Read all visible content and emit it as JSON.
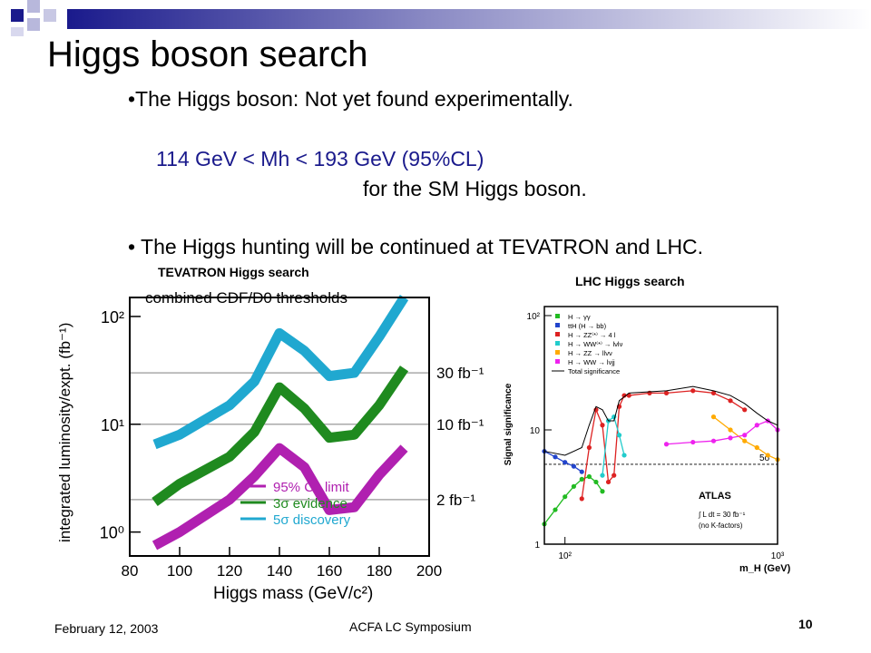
{
  "slide": {
    "title": "Higgs boson search",
    "bullet1": "•The Higgs boson:  Not yet found experimentally.",
    "mass_range": "114 GeV < Mh < 193 GeV (95%CL)",
    "mass_range_suffix": "for the SM Higgs boson.",
    "bullet2": "• The Higgs hunting will be continued at TEVATRON and LHC.",
    "accent_color": "#1a1a8c"
  },
  "captions": {
    "tevatron": "TEVATRON Higgs search",
    "lhc": "LHC Higgs search"
  },
  "footer": {
    "date": "February 12, 2003",
    "event": "ACFA LC Symposium",
    "page": "10"
  },
  "chart_data": [
    {
      "type": "line",
      "title": "combined CDF/D0 thresholds",
      "xlabel": "Higgs mass (GeV/c²)",
      "ylabel": "integrated luminosity/expt. (fb⁻¹)",
      "y_scale": "log",
      "xlim": [
        80,
        200
      ],
      "ylim": [
        0.6,
        150
      ],
      "x_ticks": [
        "80",
        "100",
        "120",
        "140",
        "160",
        "180",
        "200"
      ],
      "y_ticks": [
        "10⁰",
        "10¹",
        "10²"
      ],
      "x": [
        90,
        100,
        120,
        130,
        140,
        150,
        160,
        170,
        180,
        190
      ],
      "series": [
        {
          "name": "95% CL limit",
          "color": "#b020b0",
          "values": [
            0.75,
            1.0,
            2.0,
            3.3,
            6.0,
            4.0,
            1.6,
            1.7,
            3.4,
            6.0
          ]
        },
        {
          "name": "3σ evidence",
          "color": "#1f8a1f",
          "values": [
            1.9,
            2.8,
            5.0,
            8.5,
            22.0,
            14.0,
            7.5,
            8.0,
            15.0,
            33.0
          ]
        },
        {
          "name": "5σ discovery",
          "color": "#20a8d0",
          "values": [
            6.5,
            8.0,
            15.0,
            25.0,
            70.0,
            48.0,
            28.0,
            30.0,
            65.0,
            150.0
          ]
        }
      ],
      "reference_lines": [
        {
          "value": 30,
          "label": "30 fb⁻¹"
        },
        {
          "value": 10,
          "label": "10 fb⁻¹"
        },
        {
          "value": 2,
          "label": "2 fb⁻¹"
        }
      ],
      "legend": "bottom-right",
      "grid": false
    },
    {
      "type": "line",
      "xlabel": "m_H (GeV)",
      "ylabel": "Signal significance",
      "x_scale": "log",
      "y_scale": "log",
      "xlim": [
        80,
        1000
      ],
      "ylim": [
        1,
        120
      ],
      "x_ticks": [
        "10²",
        "10³"
      ],
      "y_ticks": [
        "1",
        "10",
        "10²"
      ],
      "threshold": {
        "value": 5,
        "label": "5σ"
      },
      "series": [
        {
          "name": "H → γγ",
          "color": "#22bb22",
          "x": [
            80,
            90,
            100,
            110,
            120,
            130,
            140,
            150
          ],
          "values": [
            1.5,
            2.0,
            2.6,
            3.2,
            3.7,
            3.9,
            3.5,
            2.9
          ]
        },
        {
          "name": "ttH (H → bb)",
          "color": "#2244cc",
          "x": [
            80,
            90,
            100,
            110,
            120
          ],
          "values": [
            6.5,
            5.8,
            5.2,
            4.8,
            4.3
          ]
        },
        {
          "name": "H → ZZ⁽*⁾ → 4 l",
          "color": "#dd2222",
          "x": [
            120,
            130,
            140,
            150,
            160,
            170,
            180,
            190,
            200,
            250,
            300,
            400,
            500,
            600,
            700
          ],
          "values": [
            2.5,
            7.0,
            15.0,
            11.0,
            3.5,
            4.0,
            16.0,
            20.0,
            20.0,
            21.0,
            21.0,
            22.0,
            21.0,
            18.0,
            15.0
          ]
        },
        {
          "name": "H → WW⁽*⁾ → lνlν",
          "color": "#22cccc",
          "x": [
            150,
            160,
            170,
            180,
            190
          ],
          "values": [
            4.0,
            12.0,
            13.0,
            9.0,
            6.0
          ]
        },
        {
          "name": "H → ZZ → llνν",
          "color": "#ffaa00",
          "x": [
            500,
            600,
            700,
            800,
            900,
            1000
          ],
          "values": [
            13.0,
            10.0,
            8.0,
            7.0,
            6.0,
            5.5
          ]
        },
        {
          "name": "H → WW → lνjj",
          "color": "#ee22ee",
          "x": [
            300,
            400,
            500,
            600,
            700,
            800,
            900,
            1000
          ],
          "values": [
            7.5,
            7.8,
            8.0,
            8.5,
            9.0,
            11.0,
            12.0,
            10.0
          ]
        },
        {
          "name": "Total significance",
          "color": "#000000",
          "x": [
            80,
            100,
            120,
            130,
            140,
            150,
            160,
            170,
            180,
            200,
            300,
            400,
            500,
            600,
            700,
            800,
            900,
            1000
          ],
          "values": [
            6.5,
            6.0,
            7.0,
            11.0,
            16.0,
            15.0,
            12.0,
            12.0,
            18.0,
            21.0,
            22.0,
            24.0,
            22.0,
            20.0,
            17.0,
            14.0,
            12.0,
            11.0
          ]
        }
      ],
      "annotations": [
        "ATLAS",
        "∫ L dt = 30 fb⁻¹",
        "(no K-factors)"
      ],
      "legend": "top-left",
      "grid": false
    }
  ]
}
